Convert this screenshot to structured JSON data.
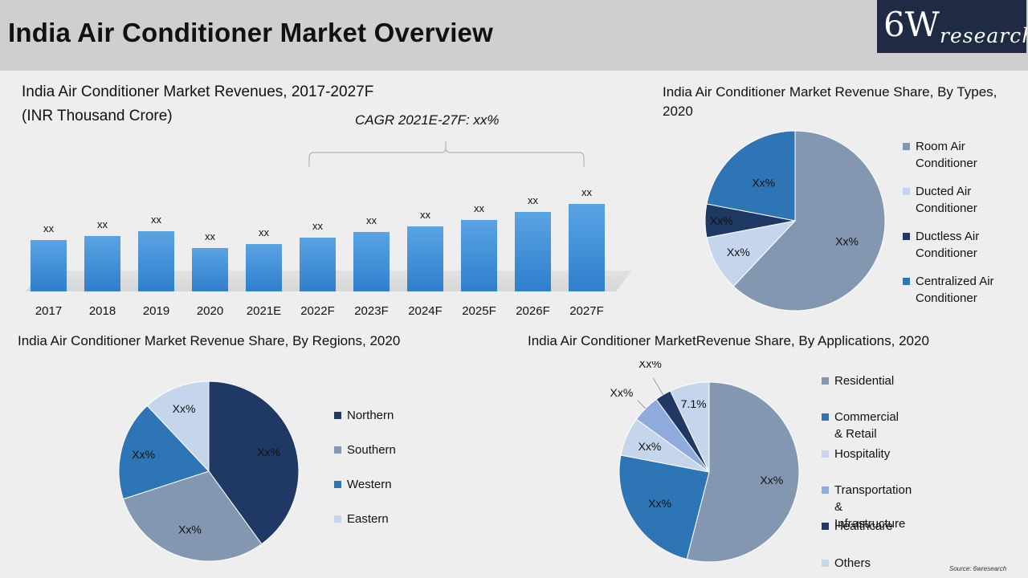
{
  "header": {
    "title": "India Air Conditioner Market Overview",
    "logo_big": "6W",
    "logo_small": "research"
  },
  "colors": {
    "room": "#8497b0",
    "ducted": "#c5d5ec",
    "ductless": "#203864",
    "centralized": "#2e75b6",
    "bar": "#3d8fd9",
    "transport": "#8faadc"
  },
  "source": "Source: 6wresearch",
  "chart_data": [
    {
      "type": "bar",
      "title": "India Air Conditioner Market Revenues, 2017-2027F",
      "subtitle": "(INR Thousand Crore)",
      "annotation": "CAGR 2021E-27F: xx%",
      "categories": [
        "2017",
        "2018",
        "2019",
        "2020",
        "2021E",
        "2022F",
        "2023F",
        "2024F",
        "2025F",
        "2026F",
        "2027F"
      ],
      "values": [
        64,
        69,
        75,
        54,
        59,
        67,
        74,
        81,
        89,
        99,
        109
      ],
      "labels": [
        "xx",
        "xx",
        "xx",
        "xx",
        "xx",
        "xx",
        "xx",
        "xx",
        "xx",
        "xx",
        "xx"
      ],
      "ylim": [
        0,
        120
      ]
    },
    {
      "type": "pie",
      "title": "India Air Conditioner Market Revenue Share, By Types, 2020",
      "legend_position": "right",
      "slices": [
        {
          "name": "Room Air Conditioner",
          "value": 62,
          "label": "Xx%",
          "color": "#8497b0"
        },
        {
          "name": "Ducted Air Conditioner",
          "value": 10,
          "label": "Xx%",
          "color": "#c5d5ec"
        },
        {
          "name": "Ductless Air Conditioner",
          "value": 6,
          "label": "Xx%",
          "color": "#203864"
        },
        {
          "name": "Centralized Air Conditioner",
          "value": 22,
          "label": "Xx%",
          "color": "#2e75b6"
        }
      ]
    },
    {
      "type": "pie",
      "title": "India Air Conditioner Market Revenue Share, By Regions, 2020",
      "legend_position": "right",
      "slices": [
        {
          "name": "Northern",
          "value": 40,
          "label": "Xx%",
          "color": "#203864"
        },
        {
          "name": "Southern",
          "value": 30,
          "label": "Xx%",
          "color": "#8497b0"
        },
        {
          "name": "Western",
          "value": 18,
          "label": "Xx%",
          "color": "#2e75b6"
        },
        {
          "name": "Eastern",
          "value": 12,
          "label": "Xx%",
          "color": "#c5d5ec"
        }
      ]
    },
    {
      "type": "pie",
      "title": "India Air Conditioner MarketRevenue Share, By Applications, 2020",
      "legend_position": "right",
      "slices": [
        {
          "name": "Residential",
          "value": 54,
          "label": "Xx%",
          "color": "#8497b0"
        },
        {
          "name": "Commercial & Retail",
          "value": 24,
          "label": "Xx%",
          "color": "#2e75b6"
        },
        {
          "name": "Hospitality",
          "value": 7,
          "label": "Xx%",
          "color": "#c5d5ec"
        },
        {
          "name": "Transportation & Infrastructure",
          "value": 5,
          "label": "Xx%",
          "color": "#8faadc"
        },
        {
          "name": "Healthcare",
          "value": 2.9,
          "label": "Xx%",
          "color": "#203864"
        },
        {
          "name": "Others",
          "value": 7.1,
          "label": "7.1%",
          "color": "#c5d5ec"
        }
      ]
    }
  ]
}
